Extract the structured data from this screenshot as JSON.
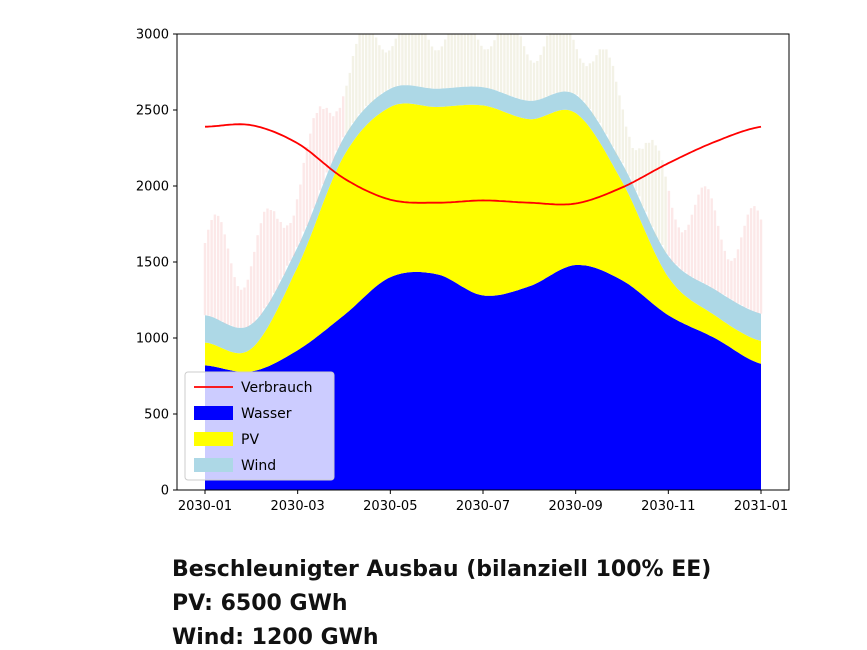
{
  "chart_data": {
    "type": "area",
    "title": "",
    "xlabel": "",
    "ylabel": "",
    "x_ticks": [
      "2030-01",
      "2030-03",
      "2030-05",
      "2030-07",
      "2030-09",
      "2030-11",
      "2031-01"
    ],
    "x_range": [
      0,
      12
    ],
    "ylim": [
      0,
      3000
    ],
    "y_ticks": [
      0,
      500,
      1000,
      1500,
      2000,
      2500,
      3000
    ],
    "x_months": [
      0,
      1,
      2,
      3,
      4,
      5,
      6,
      7,
      8,
      9,
      10,
      11,
      12
    ],
    "series": [
      {
        "name": "Wasser",
        "kind": "stacked-area",
        "color": "#0000ff",
        "values": [
          820,
          780,
          920,
          1150,
          1400,
          1420,
          1280,
          1340,
          1480,
          1380,
          1150,
          1000,
          830
        ]
      },
      {
        "name": "PV",
        "kind": "stacked-area",
        "color": "#ffff00",
        "values": [
          150,
          150,
          550,
          1050,
          1120,
          1100,
          1250,
          1100,
          1000,
          650,
          250,
          150,
          150
        ]
      },
      {
        "name": "Wind",
        "kind": "stacked-area",
        "color": "#add8e6",
        "values": [
          180,
          160,
          130,
          120,
          120,
          120,
          120,
          120,
          120,
          120,
          140,
          170,
          180
        ]
      },
      {
        "name": "Verbrauch",
        "kind": "line",
        "color": "#ff0000",
        "values": [
          2390,
          2400,
          2280,
          2050,
          1910,
          1890,
          1905,
          1890,
          1885,
          1990,
          2150,
          2290,
          2390
        ]
      }
    ],
    "legend": [
      "Verbrauch",
      "Wasser",
      "PV",
      "Wind"
    ],
    "legend_position": "lower-left"
  },
  "caption": {
    "line1": "Beschleunigter Ausbau (bilanziell 100% EE)",
    "line2": "PV: 6500 GWh",
    "line3": "Wind: 1200 GWh"
  }
}
